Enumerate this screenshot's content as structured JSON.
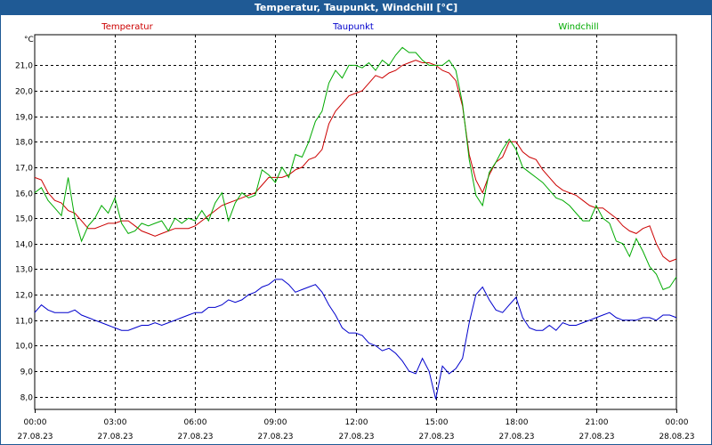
{
  "window": {
    "title": "Temperatur, Taupunkt, Windchill [°C]"
  },
  "chart_data": {
    "type": "line",
    "title": "Temperatur, Taupunkt, Windchill [°C]",
    "ylabel": "°C",
    "xlabel": "",
    "ylim": [
      7.5,
      22.2
    ],
    "xlim": [
      0,
      24
    ],
    "y_ticks": [
      "21,0",
      "20,0",
      "19,0",
      "18,0",
      "17,0",
      "16,0",
      "15,0",
      "14,0",
      "13,0",
      "12,0",
      "11,0",
      "10,0",
      "9,0",
      "8,0"
    ],
    "y_tick_values": [
      21,
      20,
      19,
      18,
      17,
      16,
      15,
      14,
      13,
      12,
      11,
      10,
      9,
      8
    ],
    "x_ticks": [
      {
        "time": "00:00",
        "date": "27.08.23",
        "hour": 0
      },
      {
        "time": "03:00",
        "date": "27.08.23",
        "hour": 3
      },
      {
        "time": "06:00",
        "date": "27.08.23",
        "hour": 6
      },
      {
        "time": "09:00",
        "date": "27.08.23",
        "hour": 9
      },
      {
        "time": "12:00",
        "date": "27.08.23",
        "hour": 12
      },
      {
        "time": "15:00",
        "date": "27.08.23",
        "hour": 15
      },
      {
        "time": "18:00",
        "date": "27.08.23",
        "hour": 18
      },
      {
        "time": "21:00",
        "date": "27.08.23",
        "hour": 21
      },
      {
        "time": "00:00",
        "date": "28.08.23",
        "hour": 24
      }
    ],
    "grid": true,
    "series": [
      {
        "name": "Temperatur",
        "color": "#cc0000",
        "x": [
          0,
          0.25,
          0.5,
          0.75,
          1,
          1.25,
          1.5,
          1.75,
          2,
          2.25,
          2.5,
          2.75,
          3,
          3.25,
          3.5,
          3.75,
          4,
          4.25,
          4.5,
          4.75,
          5,
          5.25,
          5.5,
          5.75,
          6,
          6.25,
          6.5,
          6.75,
          7,
          7.25,
          7.5,
          7.75,
          8,
          8.25,
          8.5,
          8.75,
          9,
          9.25,
          9.5,
          9.75,
          10,
          10.25,
          10.5,
          10.75,
          11,
          11.25,
          11.5,
          11.75,
          12,
          12.25,
          12.5,
          12.75,
          13,
          13.25,
          13.5,
          13.75,
          14,
          14.25,
          14.5,
          14.75,
          15,
          15.25,
          15.5,
          15.75,
          16,
          16.25,
          16.5,
          16.75,
          17,
          17.25,
          17.5,
          17.75,
          18,
          18.25,
          18.5,
          18.75,
          19,
          19.25,
          19.5,
          19.75,
          20,
          20.25,
          20.5,
          20.75,
          21,
          21.25,
          21.5,
          21.75,
          22,
          22.25,
          22.5,
          22.75,
          23,
          23.25,
          23.5,
          23.75,
          24
        ],
        "values": [
          16.6,
          16.5,
          16.0,
          15.7,
          15.6,
          15.3,
          15.2,
          14.9,
          14.6,
          14.6,
          14.7,
          14.8,
          14.8,
          14.9,
          14.9,
          14.7,
          14.5,
          14.4,
          14.3,
          14.4,
          14.5,
          14.6,
          14.6,
          14.6,
          14.7,
          14.9,
          15.1,
          15.3,
          15.5,
          15.6,
          15.7,
          15.8,
          15.9,
          16.0,
          16.3,
          16.6,
          16.6,
          16.6,
          16.7,
          16.9,
          17.0,
          17.3,
          17.4,
          17.7,
          18.7,
          19.2,
          19.5,
          19.8,
          19.9,
          20.0,
          20.3,
          20.6,
          20.5,
          20.7,
          20.8,
          21.0,
          21.1,
          21.2,
          21.1,
          21.1,
          21.0,
          20.8,
          20.7,
          20.4,
          19.4,
          17.5,
          16.5,
          16.0,
          16.7,
          17.2,
          17.4,
          18.0,
          18.0,
          17.6,
          17.4,
          17.3,
          16.9,
          16.6,
          16.3,
          16.1,
          16.0,
          15.9,
          15.7,
          15.5,
          15.4,
          15.4,
          15.2,
          15.0,
          14.7,
          14.5,
          14.4,
          14.6,
          14.7,
          14.0,
          13.5,
          13.3,
          13.4
        ],
        "label_pos": "left"
      },
      {
        "name": "Taupunkt",
        "color": "#0000cc",
        "x": [
          0,
          0.25,
          0.5,
          0.75,
          1,
          1.25,
          1.5,
          1.75,
          2,
          2.25,
          2.5,
          2.75,
          3,
          3.25,
          3.5,
          3.75,
          4,
          4.25,
          4.5,
          4.75,
          5,
          5.25,
          5.5,
          5.75,
          6,
          6.25,
          6.5,
          6.75,
          7,
          7.25,
          7.5,
          7.75,
          8,
          8.25,
          8.5,
          8.75,
          9,
          9.25,
          9.5,
          9.75,
          10,
          10.25,
          10.5,
          10.75,
          11,
          11.25,
          11.5,
          11.75,
          12,
          12.25,
          12.5,
          12.75,
          13,
          13.25,
          13.5,
          13.75,
          14,
          14.25,
          14.5,
          14.75,
          15,
          15.25,
          15.5,
          15.75,
          16,
          16.25,
          16.5,
          16.75,
          17,
          17.25,
          17.5,
          17.75,
          18,
          18.25,
          18.5,
          18.75,
          19,
          19.25,
          19.5,
          19.75,
          20,
          20.25,
          20.5,
          20.75,
          21,
          21.25,
          21.5,
          21.75,
          22,
          22.25,
          22.5,
          22.75,
          23,
          23.25,
          23.5,
          23.75,
          24
        ],
        "values": [
          11.3,
          11.6,
          11.4,
          11.3,
          11.3,
          11.3,
          11.4,
          11.2,
          11.1,
          11.0,
          10.9,
          10.8,
          10.7,
          10.6,
          10.6,
          10.7,
          10.8,
          10.8,
          10.9,
          10.8,
          10.9,
          11.0,
          11.1,
          11.2,
          11.3,
          11.3,
          11.5,
          11.5,
          11.6,
          11.8,
          11.7,
          11.8,
          12.0,
          12.1,
          12.3,
          12.4,
          12.6,
          12.6,
          12.4,
          12.1,
          12.2,
          12.3,
          12.4,
          12.1,
          11.6,
          11.2,
          10.7,
          10.5,
          10.5,
          10.4,
          10.1,
          10.0,
          9.8,
          9.9,
          9.7,
          9.4,
          9.0,
          8.9,
          9.5,
          9.0,
          7.9,
          9.2,
          8.9,
          9.1,
          9.5,
          10.9,
          12.0,
          12.3,
          11.8,
          11.4,
          11.3,
          11.6,
          11.9,
          11.1,
          10.7,
          10.6,
          10.6,
          10.8,
          10.6,
          10.9,
          10.8,
          10.8,
          10.9,
          11.0,
          11.1,
          11.2,
          11.3,
          11.1,
          11.0,
          11.0,
          11.0,
          11.1,
          11.1,
          11.0,
          11.2,
          11.2,
          11.1
        ],
        "label_pos": "center"
      },
      {
        "name": "Windchill",
        "color": "#00aa00",
        "x": [
          0,
          0.25,
          0.5,
          0.75,
          1,
          1.25,
          1.5,
          1.75,
          2,
          2.25,
          2.5,
          2.75,
          3,
          3.25,
          3.5,
          3.75,
          4,
          4.25,
          4.5,
          4.75,
          5,
          5.25,
          5.5,
          5.75,
          6,
          6.25,
          6.5,
          6.75,
          7,
          7.25,
          7.5,
          7.75,
          8,
          8.25,
          8.5,
          8.75,
          9,
          9.25,
          9.5,
          9.75,
          10,
          10.25,
          10.5,
          10.75,
          11,
          11.25,
          11.5,
          11.75,
          12,
          12.25,
          12.5,
          12.75,
          13,
          13.25,
          13.5,
          13.75,
          14,
          14.25,
          14.5,
          14.75,
          15,
          15.25,
          15.5,
          15.75,
          16,
          16.25,
          16.5,
          16.75,
          17,
          17.25,
          17.5,
          17.75,
          18,
          18.25,
          18.5,
          18.75,
          19,
          19.25,
          19.5,
          19.75,
          20,
          20.25,
          20.5,
          20.75,
          21,
          21.25,
          21.5,
          21.75,
          22,
          22.25,
          22.5,
          22.75,
          23,
          23.25,
          23.5,
          23.75,
          24
        ],
        "values": [
          16.0,
          16.2,
          15.7,
          15.4,
          15.1,
          16.6,
          15.0,
          14.1,
          14.7,
          15.0,
          15.5,
          15.2,
          15.8,
          14.8,
          14.4,
          14.5,
          14.8,
          14.7,
          14.8,
          14.9,
          14.5,
          15.0,
          14.8,
          15.0,
          14.9,
          15.3,
          14.9,
          15.6,
          16.0,
          14.9,
          15.6,
          16.0,
          15.8,
          15.9,
          16.9,
          16.7,
          16.4,
          17.0,
          16.6,
          17.5,
          17.4,
          18.0,
          18.8,
          19.2,
          20.3,
          20.8,
          20.5,
          21.0,
          21.0,
          20.9,
          21.1,
          20.8,
          21.2,
          21.0,
          21.4,
          21.7,
          21.5,
          21.5,
          21.2,
          21.0,
          21.0,
          21.0,
          21.2,
          20.8,
          19.5,
          17.3,
          15.9,
          15.5,
          16.8,
          17.2,
          17.7,
          18.1,
          17.7,
          17.0,
          16.8,
          16.6,
          16.4,
          16.1,
          15.8,
          15.7,
          15.5,
          15.2,
          14.9,
          14.9,
          15.5,
          15.0,
          14.8,
          14.1,
          14.0,
          13.5,
          14.2,
          13.7,
          13.1,
          12.8,
          12.2,
          12.3,
          12.7
        ],
        "label_pos": "right"
      }
    ]
  }
}
